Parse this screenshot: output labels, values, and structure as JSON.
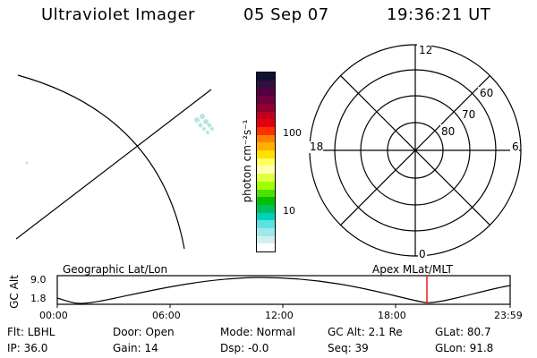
{
  "header": {
    "instrument": "Ultraviolet Imager",
    "date": "05 Sep 07",
    "time": "19:36:21 UT"
  },
  "colorbar": {
    "label": "photon cm⁻²s⁻¹",
    "ticks": [
      "100",
      "10"
    ],
    "colors": [
      "#101030",
      "#301040",
      "#500040",
      "#700040",
      "#900030",
      "#c00020",
      "#e00010",
      "#ff3000",
      "#ff8000",
      "#ffb000",
      "#ffe000",
      "#ffff60",
      "#ffffb0",
      "#e0ff40",
      "#a0ff00",
      "#50e000",
      "#00c000",
      "#00c060",
      "#00d0c0",
      "#60e0e0",
      "#a0e8e8",
      "#d0f0f0",
      "#ffffff"
    ]
  },
  "polar": {
    "mlt_labels": [
      "12",
      "18",
      "6",
      "0"
    ],
    "lat_labels": [
      "60",
      "70",
      "80"
    ]
  },
  "orbit": {
    "left_label": "Geographic Lat/Lon",
    "right_label": "Apex MLat/MLT",
    "y_axis_label": "GC Alt",
    "y_ticks": [
      "9.0",
      "1.8"
    ],
    "x_ticks": [
      "00:00",
      "06:00",
      "12:00",
      "18:00",
      "23:59"
    ],
    "marker_color": "#e02020"
  },
  "footer": {
    "flt": "Flt: LBHL",
    "ip": "IP: 36.0",
    "door": "Door: Open",
    "gain": "Gain: 14",
    "mode": "Mode: Normal",
    "dsp": "Dsp:   -0.0",
    "gc_alt": "GC Alt: 2.1 Re",
    "seq": "Seq: 39",
    "glat": "GLat: 80.7",
    "glon": "GLon:  91.8"
  }
}
